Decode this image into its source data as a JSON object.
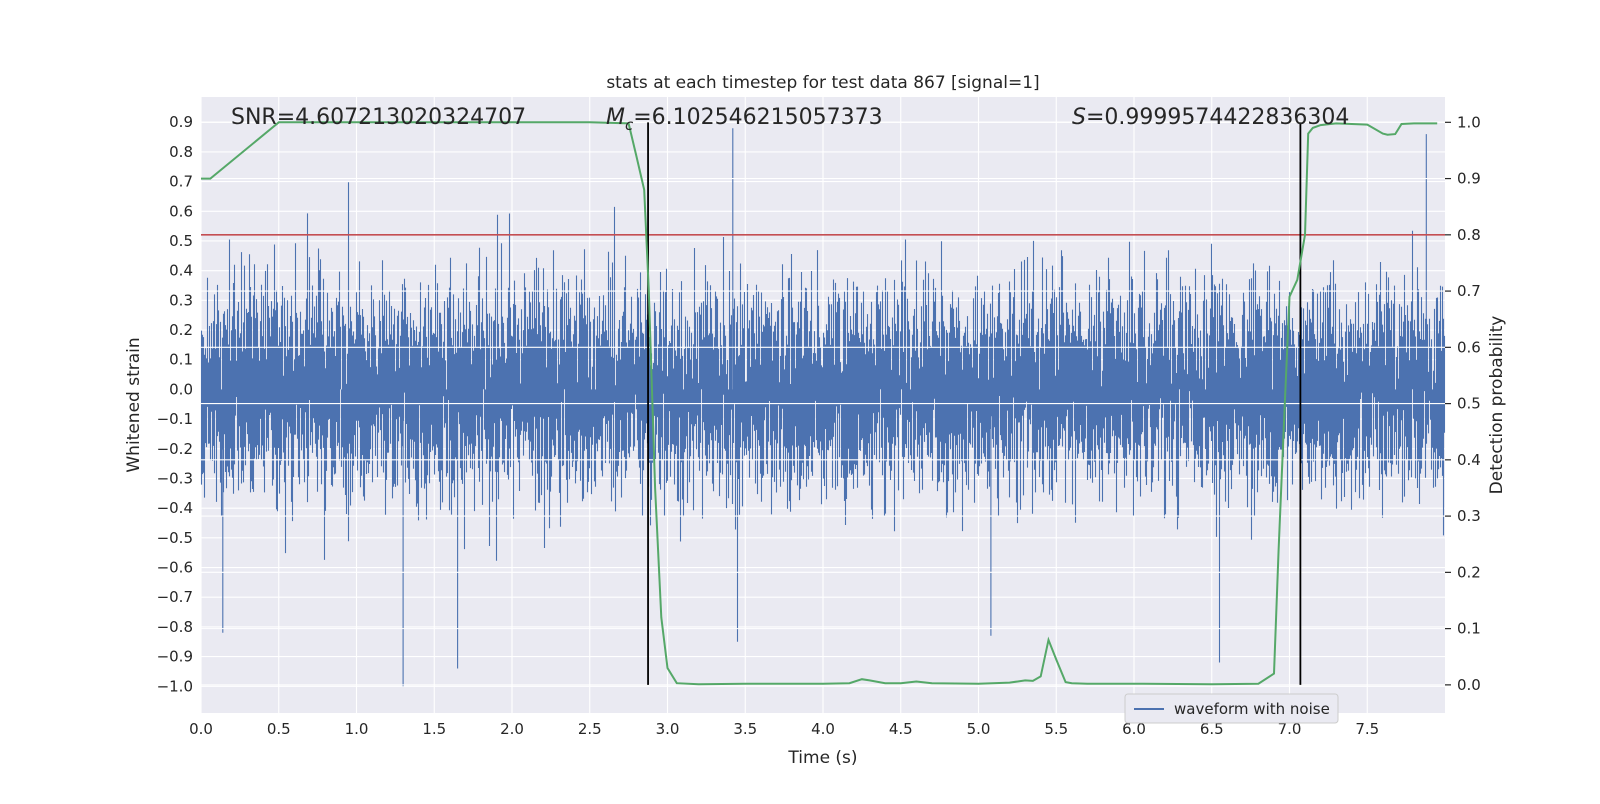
{
  "chart_data": {
    "type": "line",
    "title": "stats at each timestep for test data 867 [signal=1]",
    "xlabel": "Time (s)",
    "ylabel": "Whitened strain",
    "y2label": "Detection probability",
    "xlim": [
      0,
      8
    ],
    "ylim": [
      -1.09,
      0.985
    ],
    "y2lim": [
      -0.05,
      1.045
    ],
    "xticks": [
      0.0,
      0.5,
      1.0,
      1.5,
      2.0,
      2.5,
      3.0,
      3.5,
      4.0,
      4.5,
      5.0,
      5.5,
      6.0,
      6.5,
      7.0,
      7.5
    ],
    "xtick_labels": [
      "0.0",
      "0.5",
      "1.0",
      "1.5",
      "2.0",
      "2.5",
      "3.0",
      "3.5",
      "4.0",
      "4.5",
      "5.0",
      "5.5",
      "6.0",
      "6.5",
      "7.0",
      "7.5"
    ],
    "yticks": [
      0.9,
      0.8,
      0.7,
      0.6,
      0.5,
      0.4,
      0.3,
      0.2,
      0.1,
      0.0,
      -0.1,
      -0.2,
      -0.3,
      -0.4,
      -0.5,
      -0.6,
      -0.7,
      -0.8,
      -0.9,
      -1.0
    ],
    "ytick_labels": [
      "0.9",
      "0.8",
      "0.7",
      "0.6",
      "0.5",
      "0.4",
      "0.3",
      "0.2",
      "0.1",
      "0.0",
      "−0.1",
      "−0.2",
      "−0.3",
      "−0.4",
      "−0.5",
      "−0.6",
      "−0.7",
      "−0.8",
      "−0.9",
      "−1.0"
    ],
    "y2ticks": [
      1.0,
      0.9,
      0.8,
      0.7,
      0.6,
      0.5,
      0.4,
      0.3,
      0.2,
      0.1,
      0.0
    ],
    "y2tick_labels": [
      "1.0",
      "0.9",
      "0.8",
      "0.7",
      "0.6",
      "0.5",
      "0.4",
      "0.3",
      "0.2",
      "0.1",
      "0.0"
    ],
    "annotations": {
      "snr": "SNR=4.607213020324707",
      "mc_symbol": "M",
      "mc_sub": "c",
      "mc_value": "=6.102546215057373",
      "s_symbol": "S",
      "s_value": "=0.9999574422836304"
    },
    "threshold": {
      "value": 0.8,
      "axis": "right",
      "color": "#c44e52"
    },
    "vlines": [
      2.875,
      7.07
    ],
    "series": [
      {
        "name": "waveform with noise",
        "axis": "left",
        "color": "#4c72b0",
        "style": "dense noise",
        "body_range": [
          -0.42,
          0.45
        ],
        "extreme_range": [
          -1.0,
          0.88
        ],
        "samples": 8192
      },
      {
        "name": "Detection probability",
        "axis": "right",
        "color": "#55a868",
        "x": [
          0.0,
          0.06,
          0.5,
          1.0,
          1.5,
          2.0,
          2.5,
          2.75,
          2.8,
          2.85,
          2.88,
          2.92,
          2.96,
          3.0,
          3.06,
          3.2,
          3.5,
          4.0,
          4.17,
          4.25,
          4.3,
          4.4,
          4.5,
          4.6,
          4.7,
          5.0,
          5.2,
          5.3,
          5.35,
          5.4,
          5.45,
          5.5,
          5.56,
          5.6,
          5.7,
          6.0,
          6.5,
          6.8,
          6.9,
          6.93,
          6.97,
          7.0,
          7.05,
          7.1,
          7.12,
          7.15,
          7.2,
          7.3,
          7.5,
          7.6,
          7.63,
          7.68,
          7.72,
          7.8,
          7.95
        ],
        "y": [
          0.9,
          0.9,
          1.0,
          1.0,
          1.0,
          1.0,
          1.0,
          0.998,
          0.94,
          0.88,
          0.7,
          0.35,
          0.12,
          0.03,
          0.003,
          0.001,
          0.002,
          0.002,
          0.003,
          0.01,
          0.008,
          0.003,
          0.003,
          0.006,
          0.003,
          0.002,
          0.004,
          0.008,
          0.007,
          0.015,
          0.08,
          0.045,
          0.005,
          0.003,
          0.002,
          0.002,
          0.001,
          0.002,
          0.02,
          0.24,
          0.5,
          0.69,
          0.72,
          0.8,
          0.98,
          0.99,
          0.995,
          0.998,
          0.996,
          0.98,
          0.978,
          0.979,
          0.997,
          0.998,
          0.998
        ]
      }
    ],
    "legend": {
      "placement": "lower-right",
      "entries": [
        "waveform with noise"
      ]
    }
  }
}
